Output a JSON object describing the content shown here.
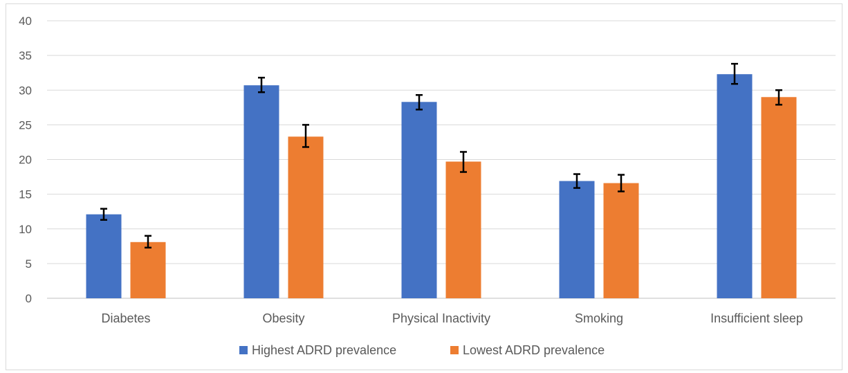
{
  "chart_data": {
    "type": "bar",
    "title": "",
    "xlabel": "",
    "ylabel": "",
    "ylim": [
      0,
      40
    ],
    "yticks": [
      0,
      5,
      10,
      15,
      20,
      25,
      30,
      35,
      40
    ],
    "grid": true,
    "legend_position": "bottom",
    "categories": [
      "Diabetes",
      "Obesity",
      "Physical Inactivity",
      "Smoking",
      "Insufficient sleep"
    ],
    "series": [
      {
        "name": "Highest ADRD prevalence",
        "color": "#4472C4",
        "values": [
          12.1,
          30.7,
          28.3,
          16.9,
          32.3
        ],
        "error_low": [
          11.3,
          29.7,
          27.2,
          15.9,
          30.9
        ],
        "error_high": [
          12.9,
          31.8,
          29.3,
          17.9,
          33.8
        ]
      },
      {
        "name": "Lowest ADRD prevalence",
        "color": "#ED7D31",
        "values": [
          8.1,
          23.3,
          19.7,
          16.6,
          29.0
        ],
        "error_low": [
          7.3,
          21.8,
          18.2,
          15.4,
          27.9
        ],
        "error_high": [
          9.0,
          25.0,
          21.1,
          17.8,
          30.0
        ]
      }
    ]
  }
}
